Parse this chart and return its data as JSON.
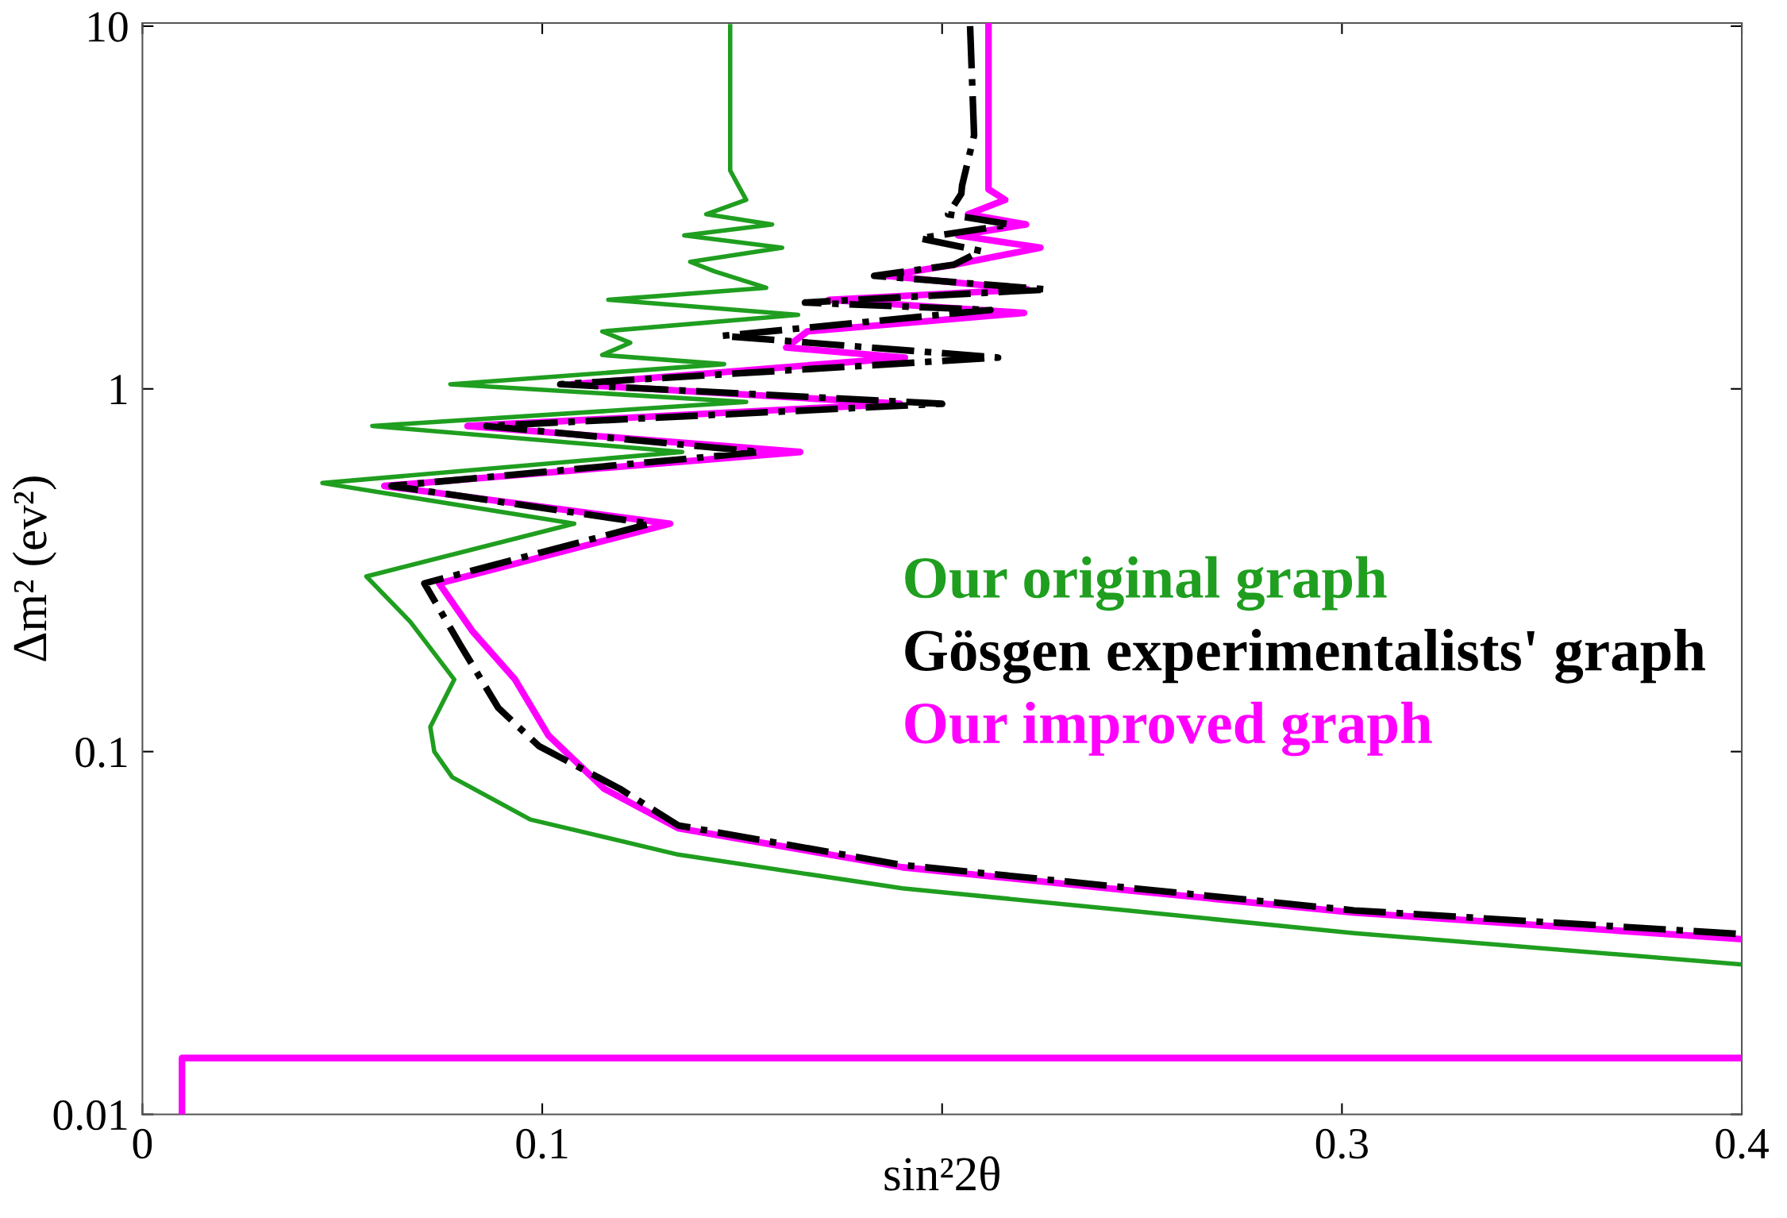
{
  "chart_data": {
    "type": "line",
    "xlabel": "sin²2θ",
    "ylabel": "Δm² (ev²)",
    "log": "y",
    "xlim": [
      0,
      0.4
    ],
    "ylim": [
      0.01,
      10.2
    ],
    "xticks": [
      0,
      0.1,
      {
        "value": 0.2,
        "label": null
      },
      0.3,
      0.4
    ],
    "yticks": [
      0.01,
      0.1,
      1,
      10
    ],
    "grid": false,
    "legend": "right",
    "series": [
      {
        "name": "Our original graph",
        "color": "#1f9e1f",
        "x": [
          0.147,
          0.147,
          0.149,
          0.151,
          0.141,
          0.1575,
          0.1355,
          0.16,
          0.137,
          0.143,
          0.156,
          0.1165,
          0.164,
          0.115,
          0.122,
          0.115,
          0.1455,
          0.077,
          0.151,
          0.0575,
          0.135,
          0.045,
          0.108,
          0.056,
          0.067,
          0.078,
          0.072,
          0.073,
          0.0775,
          0.097,
          0.134,
          0.19,
          0.246,
          0.303,
          0.4
        ],
        "values": [
          10,
          4.0,
          3.64,
          3.32,
          3.03,
          2.84,
          2.65,
          2.45,
          2.24,
          2.11,
          1.9,
          1.76,
          1.6,
          1.44,
          1.34,
          1.24,
          1.17,
          1.03,
          0.92,
          0.79,
          0.67,
          0.55,
          0.425,
          0.304,
          0.228,
          0.158,
          0.117,
          0.1,
          0.085,
          0.065,
          0.052,
          0.042,
          0.0365,
          0.0316,
          0.0259
        ]
      },
      {
        "name": "Gösgen experimentalists' graph",
        "color": "#000000",
        "line_style": "dashdot",
        "x": [
          0.207,
          0.208,
          0.205,
          0.2048,
          0.2015,
          0.217,
          0.1944,
          0.2097,
          0.203,
          0.183,
          0.2263,
          0.1657,
          0.2121,
          0.145,
          0.214,
          0.1045,
          0.2,
          0.086,
          0.1545,
          0.0623,
          0.127,
          0.0705,
          0.0796,
          0.089,
          0.0992,
          0.1194,
          0.134,
          0.19,
          0.246,
          0.303,
          0.4
        ],
        "values": [
          10,
          5.0,
          3.64,
          3.45,
          3.03,
          2.84,
          2.6,
          2.4,
          2.2,
          2.05,
          1.88,
          1.73,
          1.65,
          1.4,
          1.22,
          1.03,
          0.91,
          0.79,
          0.67,
          0.54,
          0.425,
          0.291,
          0.196,
          0.132,
          0.1035,
          0.079,
          0.0626,
          0.0487,
          0.0422,
          0.0365,
          0.0314
        ]
      },
      {
        "name": "Our improved graph",
        "color": "#ff00ff",
        "x": [
          0.2116,
          0.2116,
          0.2158,
          0.2065,
          0.221,
          0.204,
          0.2246,
          0.203,
          0.186,
          0.2214,
          0.1717,
          0.2205,
          0.1663,
          0.161,
          0.1907,
          0.1075,
          0.1895,
          0.0813,
          0.1645,
          0.0605,
          0.132,
          0.0742,
          0.0825,
          0.0932,
          0.1015,
          0.1155,
          0.134,
          0.19,
          0.246,
          0.303,
          0.4
        ],
        "values": [
          10,
          3.55,
          3.32,
          3.03,
          2.84,
          2.65,
          2.45,
          2.2,
          2.05,
          1.88,
          1.76,
          1.62,
          1.44,
          1.3,
          1.22,
          1.03,
          0.91,
          0.79,
          0.67,
          0.54,
          0.425,
          0.291,
          0.215,
          0.158,
          0.111,
          0.079,
          0.0615,
          0.048,
          0.0415,
          0.036,
          0.0304
        ]
      },
      {
        "color": "#ff00ff",
        "x": [
          0.0099,
          0.0099,
          0.4
        ],
        "values": [
          0.01,
          0.0143,
          0.0143
        ]
      }
    ]
  }
}
